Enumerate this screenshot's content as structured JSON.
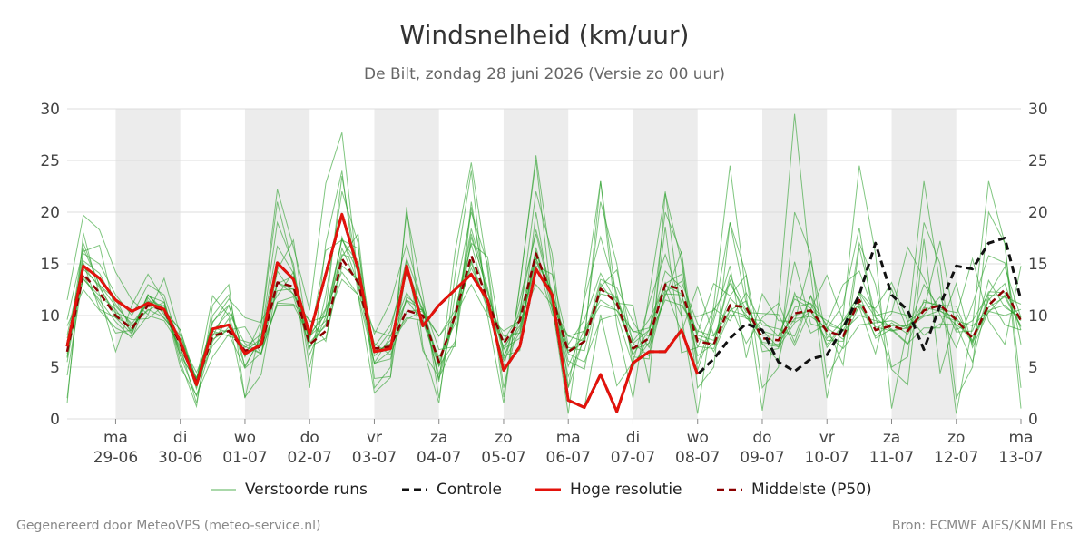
{
  "header": {
    "title": "Windsnelheid (km/uur)",
    "subtitle": "De Bilt, zondag 28 juni 2026 (Versie zo 00 uur)"
  },
  "footer": {
    "left": "Gegenereerd door MeteoVPS (meteo-service.nl)",
    "right": "Bron: ECMWF AIFS/KNMI Ens"
  },
  "legend": {
    "members": "Verstoorde runs",
    "control": "Controle",
    "hires": "Hoge resolutie",
    "p50": "Middelste (P50)"
  },
  "colors": {
    "members": "#2ca02c",
    "control": "#111111",
    "hires": "#e3120b",
    "p50": "#8b0000",
    "weekend_band": "#ececec",
    "grid": "#dddddd"
  },
  "chart_data": {
    "type": "line",
    "title": "Windsnelheid (km/uur)",
    "ylim": [
      0,
      30
    ],
    "yticks": [
      0,
      5,
      10,
      15,
      20,
      25,
      30
    ],
    "grid": true,
    "legend_position": "bottom",
    "x_unit": "days",
    "xlim": [
      -0.75,
      14
    ],
    "x_ticks": [
      {
        "day": "ma",
        "date": "29-06"
      },
      {
        "day": "di",
        "date": "30-06"
      },
      {
        "day": "wo",
        "date": "01-07"
      },
      {
        "day": "do",
        "date": "02-07"
      },
      {
        "day": "vr",
        "date": "03-07"
      },
      {
        "day": "za",
        "date": "04-07"
      },
      {
        "day": "zo",
        "date": "05-07"
      },
      {
        "day": "ma",
        "date": "06-07"
      },
      {
        "day": "di",
        "date": "07-07"
      },
      {
        "day": "wo",
        "date": "08-07"
      },
      {
        "day": "do",
        "date": "09-07"
      },
      {
        "day": "vr",
        "date": "10-07"
      },
      {
        "day": "za",
        "date": "11-07"
      },
      {
        "day": "zo",
        "date": "12-07"
      },
      {
        "day": "ma",
        "date": "13-07"
      }
    ],
    "shaded_days": [
      0,
      2,
      4,
      6,
      8,
      10,
      12
    ],
    "series": [
      {
        "name": "Hoge resolutie",
        "style": "solid",
        "x": [
          -0.75,
          -0.5,
          -0.25,
          0,
          0.25,
          0.5,
          0.75,
          1,
          1.25,
          1.5,
          1.75,
          2,
          2.25,
          2.5,
          2.75,
          3,
          3.25,
          3.5,
          3.75,
          4,
          4.25,
          4.5,
          4.75,
          5,
          5.25,
          5.5,
          5.75,
          6,
          6.25,
          6.5,
          6.75,
          7,
          7.25,
          7.5,
          7.75,
          8,
          8.25,
          8.5,
          8.75,
          9
        ],
        "y": [
          7,
          14.8,
          13.6,
          11.5,
          10.4,
          11.2,
          10.6,
          7.5,
          3.3,
          8.7,
          9.1,
          6.3,
          7.2,
          15.1,
          13.5,
          8.2,
          14,
          19.8,
          14.5,
          6.5,
          6.8,
          14.8,
          9,
          11,
          12.5,
          14,
          11.5,
          4.7,
          7,
          14.5,
          12,
          1.8,
          1.1,
          4.3,
          0.7,
          5.4,
          6.5,
          6.5,
          8.6,
          4.3
        ]
      },
      {
        "name": "Controle",
        "style": "dashed",
        "x": [
          -0.75,
          -0.5,
          -0.25,
          0,
          0.25,
          0.5,
          0.75,
          1,
          1.25,
          1.5,
          1.75,
          2,
          2.25,
          2.5,
          2.75,
          3,
          3.25,
          3.5,
          3.75,
          4,
          4.25,
          4.5,
          4.75,
          5,
          5.25,
          5.5,
          5.75,
          6,
          6.25,
          6.5,
          6.75,
          7,
          7.25,
          7.5,
          7.75,
          8,
          8.25,
          8.5,
          8.75,
          9,
          9.25,
          9.5,
          9.75,
          10,
          10.25,
          10.5,
          10.75,
          11,
          11.25,
          11.5,
          11.75,
          12,
          12.25,
          12.5,
          12.75,
          13,
          13.25,
          13.5,
          13.75,
          14
        ],
        "y": [
          7,
          14.8,
          13.6,
          11.5,
          10.4,
          11.2,
          10.6,
          7.5,
          3.3,
          8.7,
          9.1,
          6.3,
          7.2,
          15.1,
          13.5,
          8.2,
          14,
          19.8,
          14.5,
          6.5,
          6.8,
          14.8,
          9,
          11,
          12.5,
          14,
          11.5,
          4.7,
          7,
          14.5,
          12,
          1.8,
          1.1,
          4.3,
          0.7,
          5.4,
          6.5,
          6.5,
          8.6,
          4.3,
          5.8,
          7.8,
          9.2,
          8.6,
          5.5,
          4.6,
          5.8,
          6.2,
          8.8,
          12,
          17,
          12,
          10.5,
          6.7,
          11,
          14.8,
          14.5,
          17,
          17.5,
          11.5
        ]
      },
      {
        "name": "Middelste (P50)",
        "style": "dashed",
        "x": [
          -0.75,
          -0.5,
          -0.25,
          0,
          0.25,
          0.5,
          0.75,
          1,
          1.25,
          1.5,
          1.75,
          2,
          2.25,
          2.5,
          2.75,
          3,
          3.25,
          3.5,
          3.75,
          4,
          4.25,
          4.5,
          4.75,
          5,
          5.25,
          5.5,
          5.75,
          6,
          6.25,
          6.5,
          6.75,
          7,
          7.25,
          7.5,
          7.75,
          8,
          8.25,
          8.5,
          8.75,
          9,
          9.25,
          9.5,
          9.75,
          10,
          10.25,
          10.5,
          10.75,
          11,
          11.25,
          11.5,
          11.75,
          12,
          12.25,
          12.5,
          12.75,
          13,
          13.25,
          13.5,
          13.75,
          14
        ],
        "y": [
          6.5,
          14,
          12.2,
          10,
          8.7,
          11,
          10.5,
          7.2,
          3.5,
          8,
          8.5,
          6.6,
          7,
          13.2,
          12.8,
          7.2,
          8.5,
          15.5,
          13.2,
          6.8,
          7,
          10.5,
          10,
          5.5,
          10,
          15.8,
          11.5,
          7.3,
          9.5,
          16,
          11.8,
          6.5,
          7.5,
          12.6,
          11.2,
          6.8,
          7.8,
          13,
          12.5,
          7.5,
          7.2,
          11,
          10.8,
          7.8,
          7.6,
          10.2,
          10.5,
          8.5,
          8,
          11.5,
          8.6,
          9,
          8.5,
          10.5,
          11,
          9.6,
          7.8,
          11,
          12.5,
          9.5
        ]
      }
    ],
    "ensemble_members": [
      [
        11.5,
        19.7,
        18.3,
        14.2,
        11.5,
        10.1,
        13.6,
        8.1,
        3.9,
        9.3,
        11.6,
        9.8,
        9.3,
        22.2,
        16.6,
        10.5,
        22.8,
        27.7,
        13.6,
        8.2,
        11.3,
        16.9,
        11.0,
        3.6,
        16.2,
        24.8,
        14.4,
        2.1,
        12.8,
        25.5,
        14.5,
        1.9,
        1.1,
        10.1,
        3.2,
        5.5,
        11.2,
        15.9,
        11.2,
        8.3,
        13.1,
        11.9,
        13.9,
        6.5,
        6.8,
        15.2,
        9.2,
        8.7,
        11.1,
        18.5,
        8.5,
        10.2,
        16.6,
        13.6,
        10.1,
        6.9,
        11.1,
        15.8,
        15.1,
        7.2
      ],
      [
        4.2,
        13.9,
        11.2,
        8.3,
        8.6,
        11.9,
        11.3,
        6.1,
        2.2,
        7.5,
        9.7,
        2.1,
        4.3,
        13.2,
        12.5,
        7.6,
        16.3,
        17.3,
        15.1,
        6.4,
        7.3,
        9.6,
        10.5,
        5.1,
        7.5,
        21.0,
        11.3,
        5.0,
        11.5,
        17.9,
        11.6,
        4.1,
        7.8,
        13.5,
        12.7,
        9.4,
        6.9,
        11.9,
        16.2,
        5.3,
        9.9,
        19.0,
        11.2,
        7.3,
        5.6,
        12.2,
        8.3,
        9.2,
        13.0,
        14.3,
        9.9,
        4.8,
        3.3,
        17.4,
        4.4,
        9.9,
        15.5,
        9.5,
        7.2,
        14.8
      ],
      [
        6.5,
        17.0,
        12.9,
        11.6,
        8.6,
        12.0,
        10.3,
        6.7,
        3.9,
        9.4,
        11.0,
        6.1,
        7.5,
        14.4,
        17.3,
        6.8,
        10.6,
        23.5,
        13.9,
        5.3,
        6.6,
        15.4,
        6.6,
        4.0,
        7.3,
        17.6,
        12.4,
        6.8,
        7.8,
        16.6,
        10.6,
        3.1,
        11.6,
        17.6,
        12.1,
        6.0,
        5.8,
        18.6,
        6.4,
        6.9,
        10.7,
        9.5,
        12.2,
        9.1,
        8.7,
        8.0,
        11.9,
        8.9,
        5.2,
        16.6,
        10.0,
        10.4,
        10.0,
        8.1,
        9.2,
        9.1,
        5.5,
        11.7,
        9.1,
        8.6
      ],
      [
        5.5,
        14.5,
        12.9,
        9.8,
        9.0,
        10.5,
        11.3,
        5.0,
        2.3,
        6.0,
        8.2,
        4.9,
        6.4,
        11.3,
        11.8,
        7.0,
        9.2,
        16.5,
        12.9,
        5.4,
        8.0,
        12.2,
        9.8,
        4.3,
        9.8,
        15.1,
        10.6,
        5.8,
        10.6,
        18.3,
        12.1,
        5.6,
        4.8,
        12.8,
        14.4,
        7.3,
        8.6,
        12.5,
        8.4,
        12.8,
        8.1,
        11.1,
        7.3,
        9.8,
        11.2,
        7.4,
        11.9,
        6.9,
        9.0,
        10.8,
        6.3,
        12.6,
        8.5,
        13.0,
        10.6,
        10.3,
        7.5,
        13.4,
        10.8,
        9.8
      ],
      [
        9.6,
        16.5,
        13.0,
        10.9,
        9.2,
        11.3,
        10.6,
        8.6,
        3.7,
        11.9,
        10.0,
        5.1,
        7.9,
        16.7,
        14.1,
        6.2,
        9.9,
        17.3,
        16.5,
        6.4,
        8.5,
        15.5,
        11.2,
        6.7,
        7.0,
        20.5,
        11.4,
        5.6,
        8.4,
        15.6,
        10.1,
        8.0,
        7.5,
        23.0,
        11.2,
        11.0,
        3.5,
        21.8,
        15.2,
        4.7,
        9.5,
        14.8,
        5.9,
        12.1,
        9.5,
        9.4,
        15.3,
        7.8,
        9.5,
        11.1,
        10.7,
        13.2,
        9.4,
        10.5,
        17.2,
        8.6,
        9.5,
        12.1,
        14.7,
        9.8
      ],
      [
        5.9,
        16.2,
        16.8,
        10.3,
        9.6,
        9.7,
        11.0,
        6.4,
        3.4,
        8.2,
        8.6,
        7.0,
        6.3,
        11.2,
        11.1,
        9.6,
        7.5,
        15.7,
        17.9,
        3.9,
        4.1,
        14.8,
        10.3,
        8.0,
        10.5,
        17.0,
        15.7,
        6.1,
        6.6,
        20.0,
        10.6,
        6.3,
        5.5,
        9.6,
        10.1,
        5.2,
        7.4,
        13.2,
        10.0,
        9.9,
        10.5,
        13.1,
        10.3,
        10.2,
        10.1,
        7.1,
        10.6,
        13.9,
        9.5,
        12.1,
        7.8,
        8.7,
        7.3,
        8.8,
        8.8,
        13.1,
        6.9,
        10.4,
        10.0,
        10.6
      ],
      [
        7.8,
        13.5,
        11.9,
        10.6,
        8.3,
        12.0,
        10.1,
        7.4,
        4.5,
        8.0,
        11.0,
        6.0,
        9.5,
        11.9,
        14.2,
        8.2,
        10.1,
        17.4,
        14.2,
        7.0,
        9.1,
        14.1,
        10.6,
        3.8,
        10.1,
        18.4,
        12.7,
        6.1,
        8.8,
        14.8,
        14.0,
        7.2,
        9.6,
        14.1,
        11.2,
        8.4,
        8.8,
        13.1,
        14.0,
        7.8,
        7.2,
        13.9,
        10.5,
        8.6,
        6.9,
        9.3,
        10.4,
        7.6,
        7.5,
        12.3,
        10.5,
        8.6,
        7.2,
        11.5,
        10.8,
        9.5,
        7.4,
        10.8,
        11.8,
        8.9
      ],
      [
        6.3,
        15.1,
        10.6,
        9.8,
        8.2,
        12.0,
        10.5,
        8.6,
        3.1,
        7.7,
        8.6,
        8.9,
        6.3,
        13.2,
        12.1,
        7.9,
        10.7,
        14.2,
        12.0,
        5.4,
        5.8,
        11.8,
        10.7,
        5.6,
        10.0,
        17.9,
        12.2,
        6.7,
        9.8,
        15.5,
        12.3,
        6.9,
        6.6,
        12.5,
        11.8,
        7.5,
        9.6,
        12.9,
        12.1,
        6.1,
        7.3,
        13.4,
        9.7,
        9.5,
        8.0,
        11.9,
        11.1,
        8.2,
        6.8,
        9.1,
        9.3,
        9.5,
        8.7,
        11.3,
        11.0,
        10.9,
        7.2,
        12.0,
        11.8,
        11.1
      ],
      [
        8.1,
        15.3,
        14.1,
        11.1,
        9.0,
        10.6,
        9.8,
        7.5,
        2.9,
        8.5,
        10.3,
        7.3,
        6.3,
        14.3,
        12.0,
        9.4,
        9.9,
        15.9,
        15.4,
        6.5,
        7.2,
        11.5,
        9.4,
        5.1,
        10.3,
        14.6,
        11.4,
        8.0,
        8.3,
        16.1,
        11.4,
        5.1,
        8.7,
        11.5,
        10.5,
        7.3,
        6.1,
        12.3,
        13.3,
        9.2,
        6.5,
        10.1,
        9.8,
        8.1,
        8.1,
        11.6,
        10.7,
        7.2,
        9.1,
        12.2,
        9.8,
        8.5,
        9.1,
        10.1,
        11.8,
        8.4,
        8.5,
        12.3,
        12.2,
        9.7
      ],
      [
        6.0,
        14.8,
        12.7,
        10.2,
        8.5,
        11.4,
        10.9,
        6.1,
        3.7,
        8.8,
        8.4,
        6.9,
        8.2,
        13.1,
        13.8,
        7.4,
        9.0,
        17.6,
        13.0,
        7.3,
        6.2,
        10.4,
        10.6,
        5.3,
        9.7,
        16.9,
        11.3,
        7.6,
        10.1,
        16.2,
        11.6,
        6.6,
        7.9,
        12.1,
        11.7,
        6.2,
        8.6,
        14.3,
        12.7,
        8.1,
        7.6,
        11.7,
        10.1,
        7.2,
        7.0,
        10.8,
        11.2,
        9.1,
        8.6,
        11.2,
        8.0,
        9.3,
        8.2,
        10.8,
        10.4,
        9.8,
        7.6,
        11.5,
        13.1,
        8.6
      ],
      [
        7.0,
        13.6,
        11.5,
        9.4,
        7.8,
        11.7,
        9.7,
        8.1,
        3.4,
        7.1,
        8.9,
        6.5,
        7.8,
        12.4,
        12.6,
        7.0,
        7.8,
        14.8,
        13.5,
        6.1,
        7.6,
        9.8,
        9.5,
        6.0,
        9.2,
        15.3,
        10.8,
        7.0,
        9.0,
        15.2,
        12.4,
        6.4,
        7.4,
        13.1,
        10.9,
        6.7,
        7.3,
        12.1,
        12.0,
        7.0,
        6.8,
        10.5,
        11.4,
        7.4,
        7.2,
        9.7,
        9.9,
        8.8,
        7.7,
        10.9,
        8.9,
        8.5,
        8.8,
        9.9,
        10.5,
        9.1,
        8.0,
        10.3,
        12.0,
        9.0
      ],
      [
        2.0,
        16.0,
        15.0,
        12.0,
        10.0,
        13.0,
        12.0,
        7.0,
        1.5,
        10.0,
        12.0,
        5.0,
        8.0,
        19.0,
        15.0,
        5.0,
        12.0,
        22.0,
        17.0,
        3.0,
        5.0,
        20.0,
        12.0,
        2.0,
        12.0,
        20.0,
        15.0,
        3.0,
        10.0,
        22.0,
        16.0,
        3.0,
        8.0,
        21.0,
        15.0,
        5.0,
        8.0,
        20.0,
        16.0,
        3.0,
        5.0,
        19.0,
        14.0,
        3.0,
        5.0,
        20.0,
        16.0,
        4.0,
        7.0,
        17.0,
        13.0,
        5.0,
        6.0,
        19.0,
        15.0,
        2.0,
        5.0,
        20.0,
        17.0,
        3.0
      ],
      [
        9.0,
        12.5,
        10.5,
        8.8,
        8.0,
        10.0,
        9.5,
        7.0,
        4.0,
        8.5,
        8.0,
        7.5,
        7.0,
        11.0,
        11.0,
        8.0,
        9.5,
        13.5,
        12.0,
        8.5,
        8.0,
        11.5,
        10.5,
        8.0,
        10.0,
        13.0,
        10.0,
        8.5,
        9.5,
        13.0,
        11.0,
        8.0,
        8.5,
        11.0,
        10.5,
        8.5,
        8.0,
        11.5,
        11.0,
        8.5,
        8.0,
        10.5,
        10.0,
        8.5,
        8.0,
        10.0,
        10.5,
        9.5,
        8.5,
        10.0,
        9.5,
        9.0,
        9.0,
        10.0,
        10.0,
        9.5,
        9.0,
        10.5,
        11.0,
        9.5
      ],
      [
        1.5,
        18.0,
        12.0,
        6.5,
        11.0,
        14.0,
        11.5,
        5.5,
        1.2,
        11.0,
        13.0,
        2.0,
        9.0,
        21.0,
        14.5,
        3.0,
        17.0,
        24.0,
        12.0,
        2.5,
        4.0,
        20.5,
        7.0,
        1.5,
        14.0,
        24.0,
        10.0,
        1.5,
        13.0,
        25.0,
        11.0,
        0.5,
        12.0,
        23.0,
        9.0,
        2.0,
        12.0,
        22.0,
        10.0,
        0.5,
        11.0,
        24.5,
        12.0,
        0.8,
        11.0,
        29.5,
        14.0,
        2.0,
        10.0,
        24.5,
        16.0,
        1.0,
        9.0,
        23.0,
        13.0,
        0.5,
        9.0,
        23.0,
        17.0,
        1.0
      ]
    ]
  }
}
